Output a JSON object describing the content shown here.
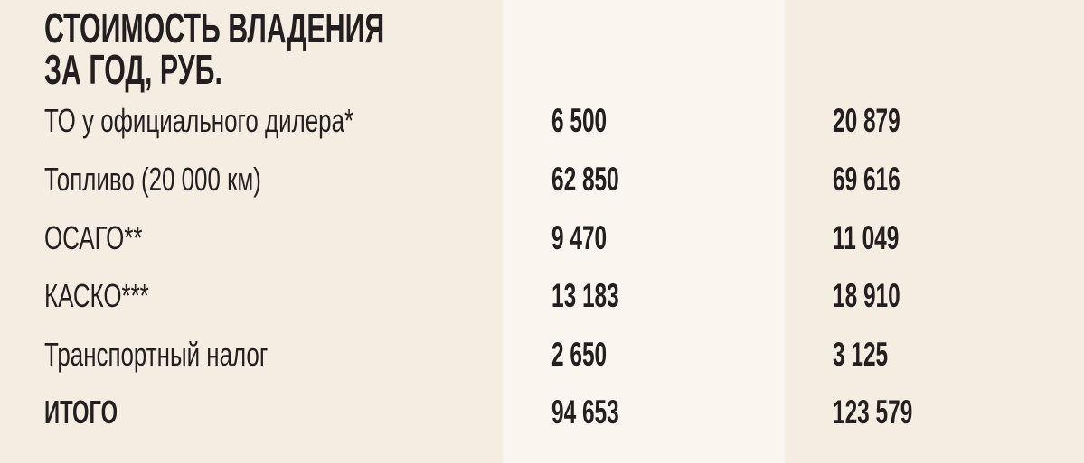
{
  "title_lines": [
    "СТОИМОСТЬ ВЛАДЕНИЯ",
    "ЗА ГОД, РУБ."
  ],
  "rows": [
    {
      "label": "ТО у официального дилера*",
      "col1": "6 500",
      "col2": "20 879"
    },
    {
      "label": "Топливо (20 000 км)",
      "col1": "62 850",
      "col2": "69 616"
    },
    {
      "label": "ОСАГО**",
      "col1": "9 470",
      "col2": "11 049"
    },
    {
      "label": "КАСКО***",
      "col1": "13 183",
      "col2": "18 910"
    },
    {
      "label": "Транспортный налог",
      "col1": "2 650",
      "col2": "3 125"
    },
    {
      "label": "ИТОГО",
      "col1": "94 653",
      "col2": "123 579"
    }
  ],
  "colors": {
    "background": "#f5ede1",
    "highlight_column": "#faf6ef",
    "text": "#231f20"
  }
}
